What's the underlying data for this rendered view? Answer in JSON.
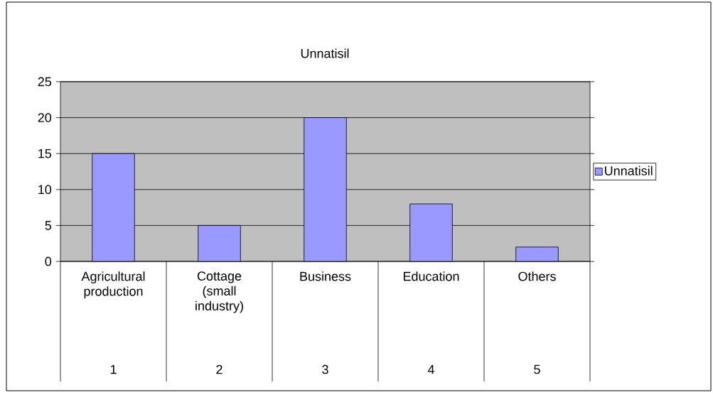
{
  "chart_data": {
    "type": "bar",
    "title": "Unnatisil",
    "categories": [
      "Agricultural production",
      "Cottage (small industry)",
      "Business",
      "Education",
      "Others"
    ],
    "series": [
      {
        "name": "Unnatisil",
        "color": "#9999ff",
        "values": [
          15,
          5,
          20,
          8,
          2
        ]
      }
    ],
    "ylim": [
      0,
      25
    ],
    "yticks": [
      0,
      5,
      10,
      15,
      20,
      25
    ],
    "grid": "y",
    "legend": "right",
    "annotations": [
      "1",
      "2",
      "3",
      "4",
      "5"
    ]
  }
}
